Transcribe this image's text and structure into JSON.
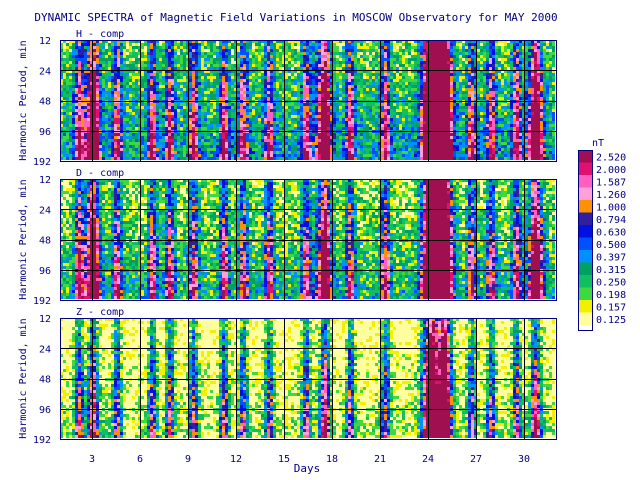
{
  "chart_data": {
    "type": "heatmap",
    "title": "DYNAMIC SPECTRA of Magnetic Field Variations in MOSCOW Observatory for MAY 2000",
    "xlabel": "Days",
    "ylabel": "Harmonic Period, min",
    "x_ticks": [
      "3",
      "6",
      "9",
      "12",
      "15",
      "18",
      "21",
      "24",
      "27",
      "30"
    ],
    "x_tick_days": [
      3,
      6,
      9,
      12,
      15,
      18,
      21,
      24,
      27,
      30
    ],
    "xlim": [
      1,
      32
    ],
    "y_ticks": [
      "12",
      "24",
      "48",
      "96",
      "192"
    ],
    "y_tick_periods": [
      12,
      24,
      48,
      96,
      192
    ],
    "ylim": [
      12,
      192
    ],
    "y_scale": "log",
    "grid": true,
    "panels": [
      {
        "name": "H - comp"
      },
      {
        "name": "D - comp"
      },
      {
        "name": "Z - comp"
      }
    ],
    "colorbar": {
      "unit": "nT",
      "labels": [
        "2.520",
        "2.000",
        "1.587",
        "1.260",
        "1.000",
        "0.794",
        "0.630",
        "0.500",
        "0.397",
        "0.315",
        "0.250",
        "0.198",
        "0.157",
        "0.125"
      ],
      "colors": [
        "#a01050",
        "#e01070",
        "#ff60c0",
        "#ffa0d8",
        "#ff9000",
        "#3020a0",
        "#0010e0",
        "#0050ff",
        "#0090ff",
        "#00a060",
        "#10c060",
        "#40d840",
        "#f0f000",
        "#ffffa0"
      ]
    },
    "activity_days": [
      2.2,
      3.1,
      4.6,
      6.8,
      7.9,
      9.4,
      11.3,
      12.5,
      14.1,
      16.4,
      17.6,
      19.2,
      21.4,
      24.3,
      25.1,
      26.8,
      28.0,
      29.6,
      30.8
    ],
    "storm_days": [
      24.0,
      24.6,
      25.2
    ],
    "moderate_days": [
      3.0,
      17.5,
      30.8
    ]
  }
}
